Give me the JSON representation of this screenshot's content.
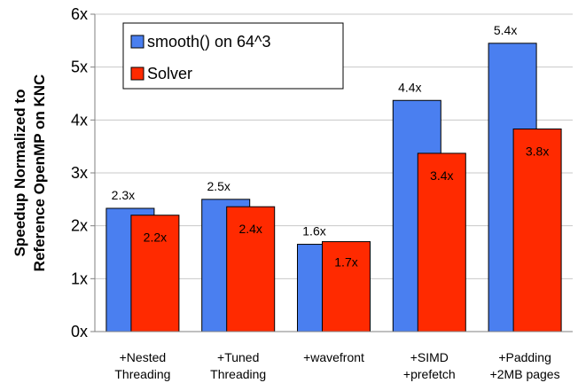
{
  "chart_data": {
    "type": "bar",
    "categories": [
      [
        "+Nested",
        "Threading"
      ],
      [
        "+Tuned",
        "Threading"
      ],
      [
        "+wavefront"
      ],
      [
        "+SIMD",
        "+prefetch"
      ],
      [
        "+Padding",
        "+2MB pages"
      ]
    ],
    "series": [
      {
        "name": "smooth() on 64^3",
        "values": [
          2.33,
          2.5,
          1.65,
          4.37,
          5.45
        ],
        "labels": [
          "2.3x",
          "2.5x",
          "1.6x",
          "4.4x",
          "5.4x"
        ],
        "color": "#4a7ff0"
      },
      {
        "name": "Solver",
        "values": [
          2.2,
          2.36,
          1.7,
          3.37,
          3.83
        ],
        "labels": [
          "2.2x",
          "2.4x",
          "1.7x",
          "3.4x",
          "3.8x"
        ],
        "color": "#ff2a00"
      }
    ],
    "ylabel": [
      "Speedup Normalized to",
      "Reference OpenMP on KNC"
    ],
    "ylim": [
      0,
      6
    ],
    "yticks": [
      "0x",
      "1x",
      "2x",
      "3x",
      "4x",
      "5x",
      "6x"
    ],
    "grid": true,
    "legend_position": "top-left"
  }
}
